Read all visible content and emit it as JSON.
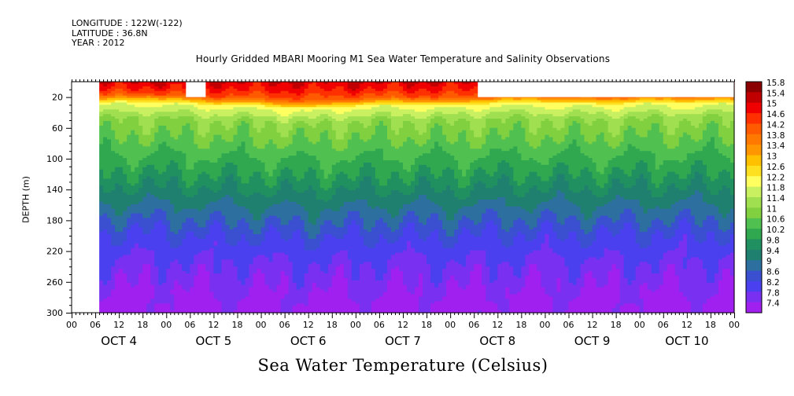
{
  "header": {
    "longitude": "LONGITUDE : 122W(-122)",
    "latitude": "LATITUDE : 36.8N",
    "year": "YEAR : 2012"
  },
  "chart_data": {
    "type": "heatmap",
    "title": "Hourly Gridded MBARI Mooring M1 Sea Water Temperature and Salinity Observations",
    "colorbar_title": "Sea Water Temperature (Celsius)",
    "xlabel": "",
    "ylabel": "DEPTH (m)",
    "x_range_hours": [
      0,
      168
    ],
    "y_range_m": [
      300,
      0
    ],
    "y_ticks": [
      20,
      60,
      100,
      140,
      180,
      220,
      260,
      300
    ],
    "x_hour_labels": [
      "00",
      "06",
      "12",
      "18",
      "00",
      "06",
      "12",
      "18",
      "00",
      "06",
      "12",
      "18",
      "00",
      "06",
      "12",
      "18",
      "00",
      "06",
      "12",
      "18",
      "00",
      "06",
      "12",
      "18",
      "00",
      "06",
      "12",
      "18",
      "00"
    ],
    "x_day_labels": [
      {
        "label": "OCT  4",
        "hour": 12
      },
      {
        "label": "OCT  5",
        "hour": 36
      },
      {
        "label": "OCT  6",
        "hour": 60
      },
      {
        "label": "OCT  7",
        "hour": 84
      },
      {
        "label": "OCT  8",
        "hour": 108
      },
      {
        "label": "OCT  9",
        "hour": 132
      },
      {
        "label": "OCT 10",
        "hour": 156
      }
    ],
    "colorbar_levels": [
      15.8,
      15.4,
      15,
      14.6,
      14.2,
      13.8,
      13.4,
      13,
      12.6,
      12.2,
      11.8,
      11.4,
      11,
      10.6,
      10.2,
      9.8,
      9.4,
      9,
      8.6,
      8.2,
      7.8,
      7.4
    ],
    "colorbar_colors": [
      "#8b0000",
      "#c00000",
      "#f00000",
      "#ff3000",
      "#ff5a00",
      "#ff7800",
      "#ff9600",
      "#ffc000",
      "#ffe020",
      "#ffff60",
      "#c8f060",
      "#a0e050",
      "#80d040",
      "#50c050",
      "#30a850",
      "#209060",
      "#208070",
      "#2d70a0",
      "#3a50d0",
      "#4a40f0",
      "#7a30f0",
      "#a020f0"
    ],
    "data_start_hour": 7,
    "profile_depth_m": [
      0,
      10,
      20,
      30,
      50,
      80,
      120,
      160,
      200,
      240,
      270,
      300
    ],
    "profile_temp_c": [
      15.4,
      15.0,
      14.4,
      12.4,
      11.4,
      10.9,
      10.2,
      9.4,
      8.6,
      8.1,
      7.8,
      7.6
    ],
    "mixed_layer_depth_m": [
      {
        "hour": 7,
        "depth": 22
      },
      {
        "hour": 20,
        "depth": 20
      },
      {
        "hour": 33,
        "depth": 24
      },
      {
        "hour": 48,
        "depth": 26
      },
      {
        "hour": 60,
        "depth": 30
      },
      {
        "hour": 70,
        "depth": 26
      },
      {
        "hour": 84,
        "depth": 24
      },
      {
        "hour": 96,
        "depth": 26
      },
      {
        "hour": 108,
        "depth": 22
      },
      {
        "hour": 120,
        "depth": 22
      },
      {
        "hour": 132,
        "depth": 24
      },
      {
        "hour": 144,
        "depth": 22
      },
      {
        "hour": 168,
        "depth": 22
      }
    ],
    "missing_data": [
      {
        "hour_start": 0,
        "hour_end": 7,
        "depth_start": 0,
        "depth_end": 300
      },
      {
        "hour_start": 29,
        "hour_end": 34,
        "depth_start": 0,
        "depth_end": 20
      },
      {
        "hour_start": 103,
        "hour_end": 168,
        "depth_start": 0,
        "depth_end": 20
      }
    ]
  }
}
